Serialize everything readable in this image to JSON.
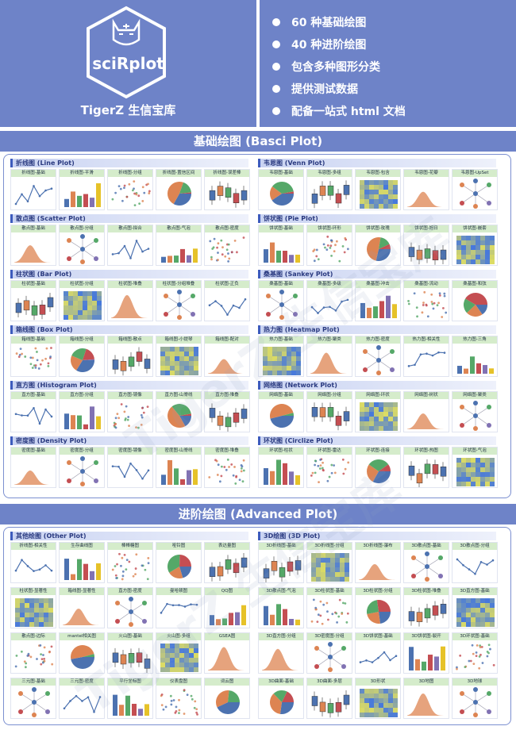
{
  "header": {
    "brand": "sciRplot",
    "title": "TigerZ 生信宝库",
    "bullets": [
      "60 种基础绘图",
      "40 种进阶绘图",
      "包含多种图形分类",
      "提供测试数据",
      "配备一站式 html 文档"
    ]
  },
  "basic_band": "基础绘图 (Basci Plot)",
  "advanced_band": "进阶绘图 (Advanced Plot)",
  "basic_sections": [
    {
      "title": "折线图 (Line Plot)",
      "items": [
        "折线图-基础",
        "折线图-平滑",
        "折线图-分组",
        "折线图-置信区间",
        "折线图-误差棒"
      ]
    },
    {
      "title": "韦恩图 (Venn Plot)",
      "items": [
        "韦恩图-基础",
        "韦恩图-多组",
        "韦恩图-包含",
        "韦恩图-花瓣",
        "韦恩图-UpSet"
      ]
    },
    {
      "title": "散点图 (Scatter Plot)",
      "items": [
        "散点图-基础",
        "散点图-分组",
        "散点图-拟合",
        "散点图-气泡",
        "散点图-密度"
      ]
    },
    {
      "title": "饼状图 (Pie Plot)",
      "items": [
        "饼状图-基础",
        "饼状图-环形",
        "饼状图-玫瑰",
        "饼状图-旭日",
        "饼状图-嵌套"
      ]
    },
    {
      "title": "柱状图 (Bar Plot)",
      "items": [
        "柱状图-基础",
        "柱状图-分组",
        "柱状图-堆叠",
        "柱状图-分组堆叠",
        "柱状图-正负"
      ]
    },
    {
      "title": "桑基图 (Sankey Plot)",
      "items": [
        "桑基图-基础",
        "桑基图-多级",
        "桑基图-冲击",
        "桑基图-流动",
        "桑基图-和弦"
      ]
    },
    {
      "title": "箱线图 (Box Plot)",
      "items": [
        "箱线图-基础",
        "箱线图-分组",
        "箱线图-散点",
        "箱线图-小提琴",
        "箱线图-配对"
      ]
    },
    {
      "title": "热力图 (Heatmap Plot)",
      "items": [
        "热力图-基础",
        "热力图-聚类",
        "热力图-密度",
        "热力图-相关性",
        "热力图-三角"
      ]
    },
    {
      "title": "直方图 (Histogram Plot)",
      "items": [
        "直方图-基础",
        "直方图-分组",
        "直方图-镜像",
        "直方图-山脊线",
        "直方图-堆叠"
      ]
    },
    {
      "title": "网络图 (Network Plot)",
      "items": [
        "网络图-基础",
        "网络图-分组",
        "网络图-环状",
        "网络图-树状",
        "网络图-聚类"
      ]
    },
    {
      "title": "密度图 (Density Plot)",
      "items": [
        "密度图-基础",
        "密度图-分组",
        "密度图-镜像",
        "密度图-山脊线",
        "密度图-堆叠"
      ]
    },
    {
      "title": "环状图 (Circlize Plot)",
      "items": [
        "环状图-柱状",
        "环状图-雷达",
        "环状图-连接",
        "环状图-热图",
        "环状图-气泡"
      ]
    }
  ],
  "advanced_sections": [
    {
      "title": "其他绘图 (Other Plot)",
      "rows": [
        [
          "折线图-相关性",
          "生存曲线图",
          "棒棒糖图",
          "哑铃图",
          "表达量图"
        ],
        [
          "柱状图-显著性",
          "箱线图-显著性",
          "直方图-密度",
          "曼哈顿图",
          "QQ图"
        ],
        [
          "散点图-边际",
          "mantel相关图",
          "火山图-基础",
          "火山图-多组",
          "GSEA图"
        ],
        [
          "三元图-基础",
          "三元图-密度",
          "平行坐标图",
          "仪表盘图",
          "词云图"
        ]
      ]
    },
    {
      "title": "3D绘图 (3D Plot)",
      "rows": [
        [
          "3D折线图-基础",
          "3D折线图-分组",
          "3D折线图-瀑布",
          "3D散点图-基础",
          "3D散点图-分组"
        ],
        [
          "3D散点图-气泡",
          "3D柱状图-基础",
          "3D柱状图-分组",
          "3D柱状图-堆叠",
          "3D直方图-基础"
        ],
        [
          "3D直方图-分组",
          "3D密度图-分组",
          "3D饼状图-基础",
          "3D饼状图-裂开",
          "3D环状图-基础"
        ],
        [
          "3D曲面-基础",
          "3D曲面-多层",
          "3D形状",
          "3D地图",
          "3D地球"
        ]
      ]
    }
  ],
  "watermark": "TigerZ 生信宝库",
  "colors": {
    "accent": "#6e83c8",
    "border": "#7b8fd0",
    "label_bg": "#d5eccb"
  }
}
